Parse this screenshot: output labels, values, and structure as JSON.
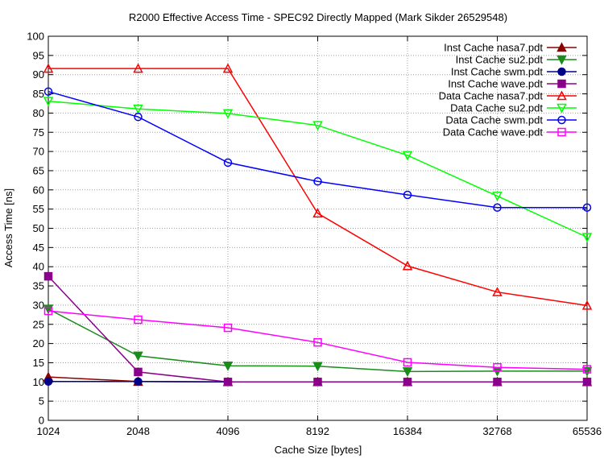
{
  "chart_data": {
    "type": "line",
    "title": "R2000 Effective Access Time - SPEC92 Directly Mapped (Mark Sikder 26529548)",
    "xlabel": "Cache Size [bytes]",
    "ylabel": "Access Time [ns]",
    "x_scale": "log2",
    "x": [
      1024,
      2048,
      4096,
      8192,
      16384,
      32768,
      65536
    ],
    "x_tick_labels": [
      "1024",
      "2048",
      "4096",
      "8192",
      "16384",
      "32768",
      "65536"
    ],
    "ylim": [
      0,
      100
    ],
    "y_ticks": [
      0,
      5,
      10,
      15,
      20,
      25,
      30,
      35,
      40,
      45,
      50,
      55,
      60,
      65,
      70,
      75,
      80,
      85,
      90,
      95,
      100
    ],
    "grid": true,
    "legend_position": "top-right",
    "series": [
      {
        "name": "Inst Cache nasa7.pdt",
        "color": "#8b0000",
        "marker": "triangle-filled",
        "values": [
          11.3,
          10.1,
          10.0,
          10.0,
          10.0,
          10.0,
          10.0
        ]
      },
      {
        "name": "Inst Cache su2.pdt",
        "color": "#1a8c1a",
        "marker": "triangle-down-filled",
        "values": [
          29.0,
          16.8,
          14.2,
          14.1,
          12.7,
          12.8,
          12.8
        ]
      },
      {
        "name": "Inst Cache swm.pdt",
        "color": "#00008b",
        "marker": "circle-filled",
        "values": [
          10.1,
          10.1,
          10.0,
          10.0,
          10.0,
          10.0,
          10.0
        ]
      },
      {
        "name": "Inst Cache wave.pdt",
        "color": "#8b008b",
        "marker": "square-filled",
        "values": [
          37.5,
          12.6,
          10.0,
          10.0,
          10.0,
          10.0,
          10.0
        ]
      },
      {
        "name": "Data Cache nasa7.pdt",
        "color": "#ff0000",
        "marker": "triangle-open",
        "values": [
          91.6,
          91.6,
          91.6,
          53.9,
          40.2,
          33.4,
          29.9
        ]
      },
      {
        "name": "Data Cache su2.pdt",
        "color": "#00ff00",
        "marker": "triangle-down-open",
        "values": [
          83.1,
          81.1,
          79.9,
          76.8,
          69.0,
          58.4,
          47.7
        ]
      },
      {
        "name": "Data Cache swm.pdt",
        "color": "#0000ff",
        "marker": "circle-open",
        "values": [
          85.6,
          79.0,
          67.1,
          62.2,
          58.7,
          55.4,
          55.4
        ]
      },
      {
        "name": "Data Cache wave.pdt",
        "color": "#ff00ff",
        "marker": "square-open",
        "values": [
          28.5,
          26.2,
          24.1,
          20.3,
          15.1,
          13.8,
          13.3
        ]
      }
    ]
  }
}
